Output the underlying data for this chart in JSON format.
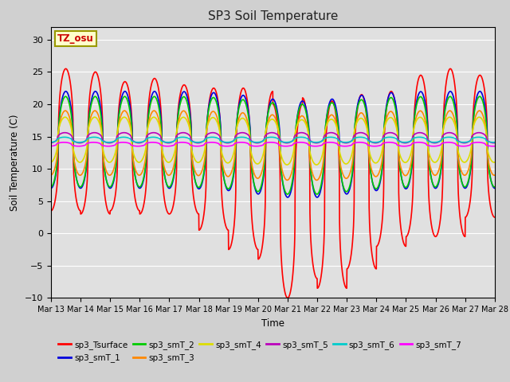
{
  "title": "SP3 Soil Temperature",
  "ylabel": "Soil Temperature (C)",
  "xlabel": "Time",
  "ylim": [
    -10,
    32
  ],
  "yticks": [
    -10,
    -5,
    0,
    5,
    10,
    15,
    20,
    25,
    30
  ],
  "date_labels": [
    "Mar 13",
    "Mar 14",
    "Mar 15",
    "Mar 16",
    "Mar 17",
    "Mar 18",
    "Mar 19",
    "Mar 20",
    "Mar 21",
    "Mar 22",
    "Mar 23",
    "Mar 24",
    "Mar 25",
    "Mar 26",
    "Mar 27",
    "Mar 28"
  ],
  "legend": [
    {
      "label": "sp3_Tsurface",
      "color": "#ff0000"
    },
    {
      "label": "sp3_smT_1",
      "color": "#0000dd"
    },
    {
      "label": "sp3_smT_2",
      "color": "#00cc00"
    },
    {
      "label": "sp3_smT_3",
      "color": "#ff8800"
    },
    {
      "label": "sp3_smT_4",
      "color": "#dddd00"
    },
    {
      "label": "sp3_smT_5",
      "color": "#bb00bb"
    },
    {
      "label": "sp3_smT_6",
      "color": "#00cccc"
    },
    {
      "label": "sp3_smT_7",
      "color": "#ff00ff"
    }
  ],
  "annotation_text": "TZ_osu",
  "annotation_color": "#cc0000",
  "fig_bg_color": "#d0d0d0",
  "plot_bg_color": "#e0e0e0"
}
